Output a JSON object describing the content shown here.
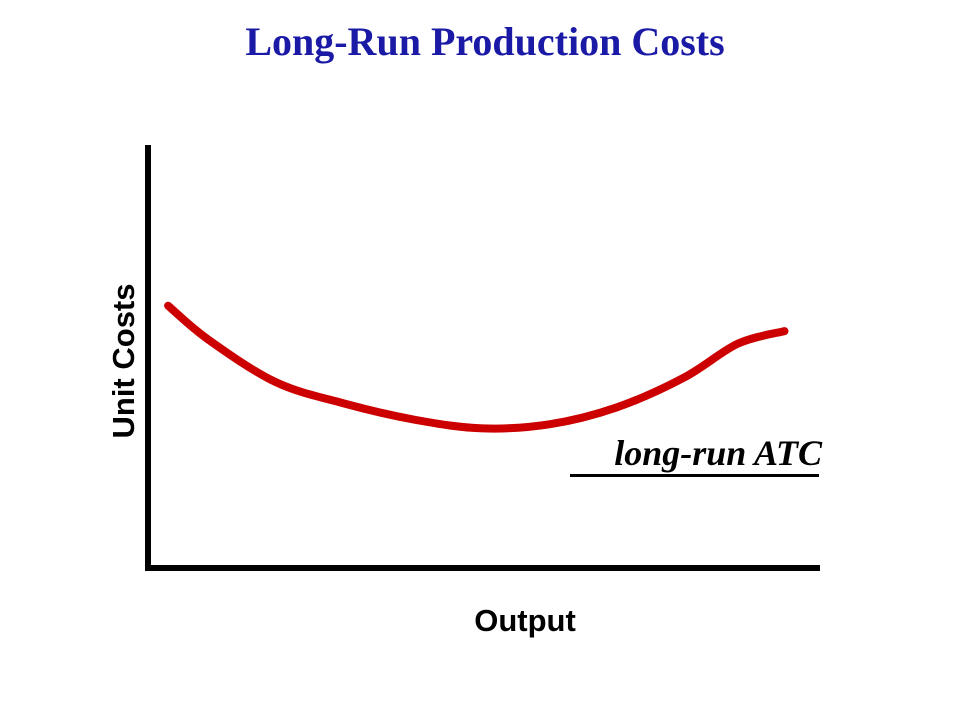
{
  "chart_data": {
    "type": "line",
    "title": "Long-Run Production Costs",
    "xlabel": "Output",
    "ylabel": "Unit Costs",
    "grid": false,
    "colors": {
      "title": "#1a1aa6",
      "curve": "#cc0000",
      "axis": "#000000"
    },
    "series": [
      {
        "name": "long-run ATC",
        "shape": "u-shaped",
        "values": [
          [
            0.03,
            0.62
          ],
          [
            0.09,
            0.54
          ],
          [
            0.19,
            0.44
          ],
          [
            0.29,
            0.39
          ],
          [
            0.4,
            0.35
          ],
          [
            0.5,
            0.33
          ],
          [
            0.6,
            0.34
          ],
          [
            0.7,
            0.38
          ],
          [
            0.8,
            0.45
          ],
          [
            0.88,
            0.53
          ],
          [
            0.95,
            0.56
          ]
        ]
      }
    ],
    "xlim": [
      0,
      1
    ],
    "ylim": [
      0,
      1
    ]
  }
}
